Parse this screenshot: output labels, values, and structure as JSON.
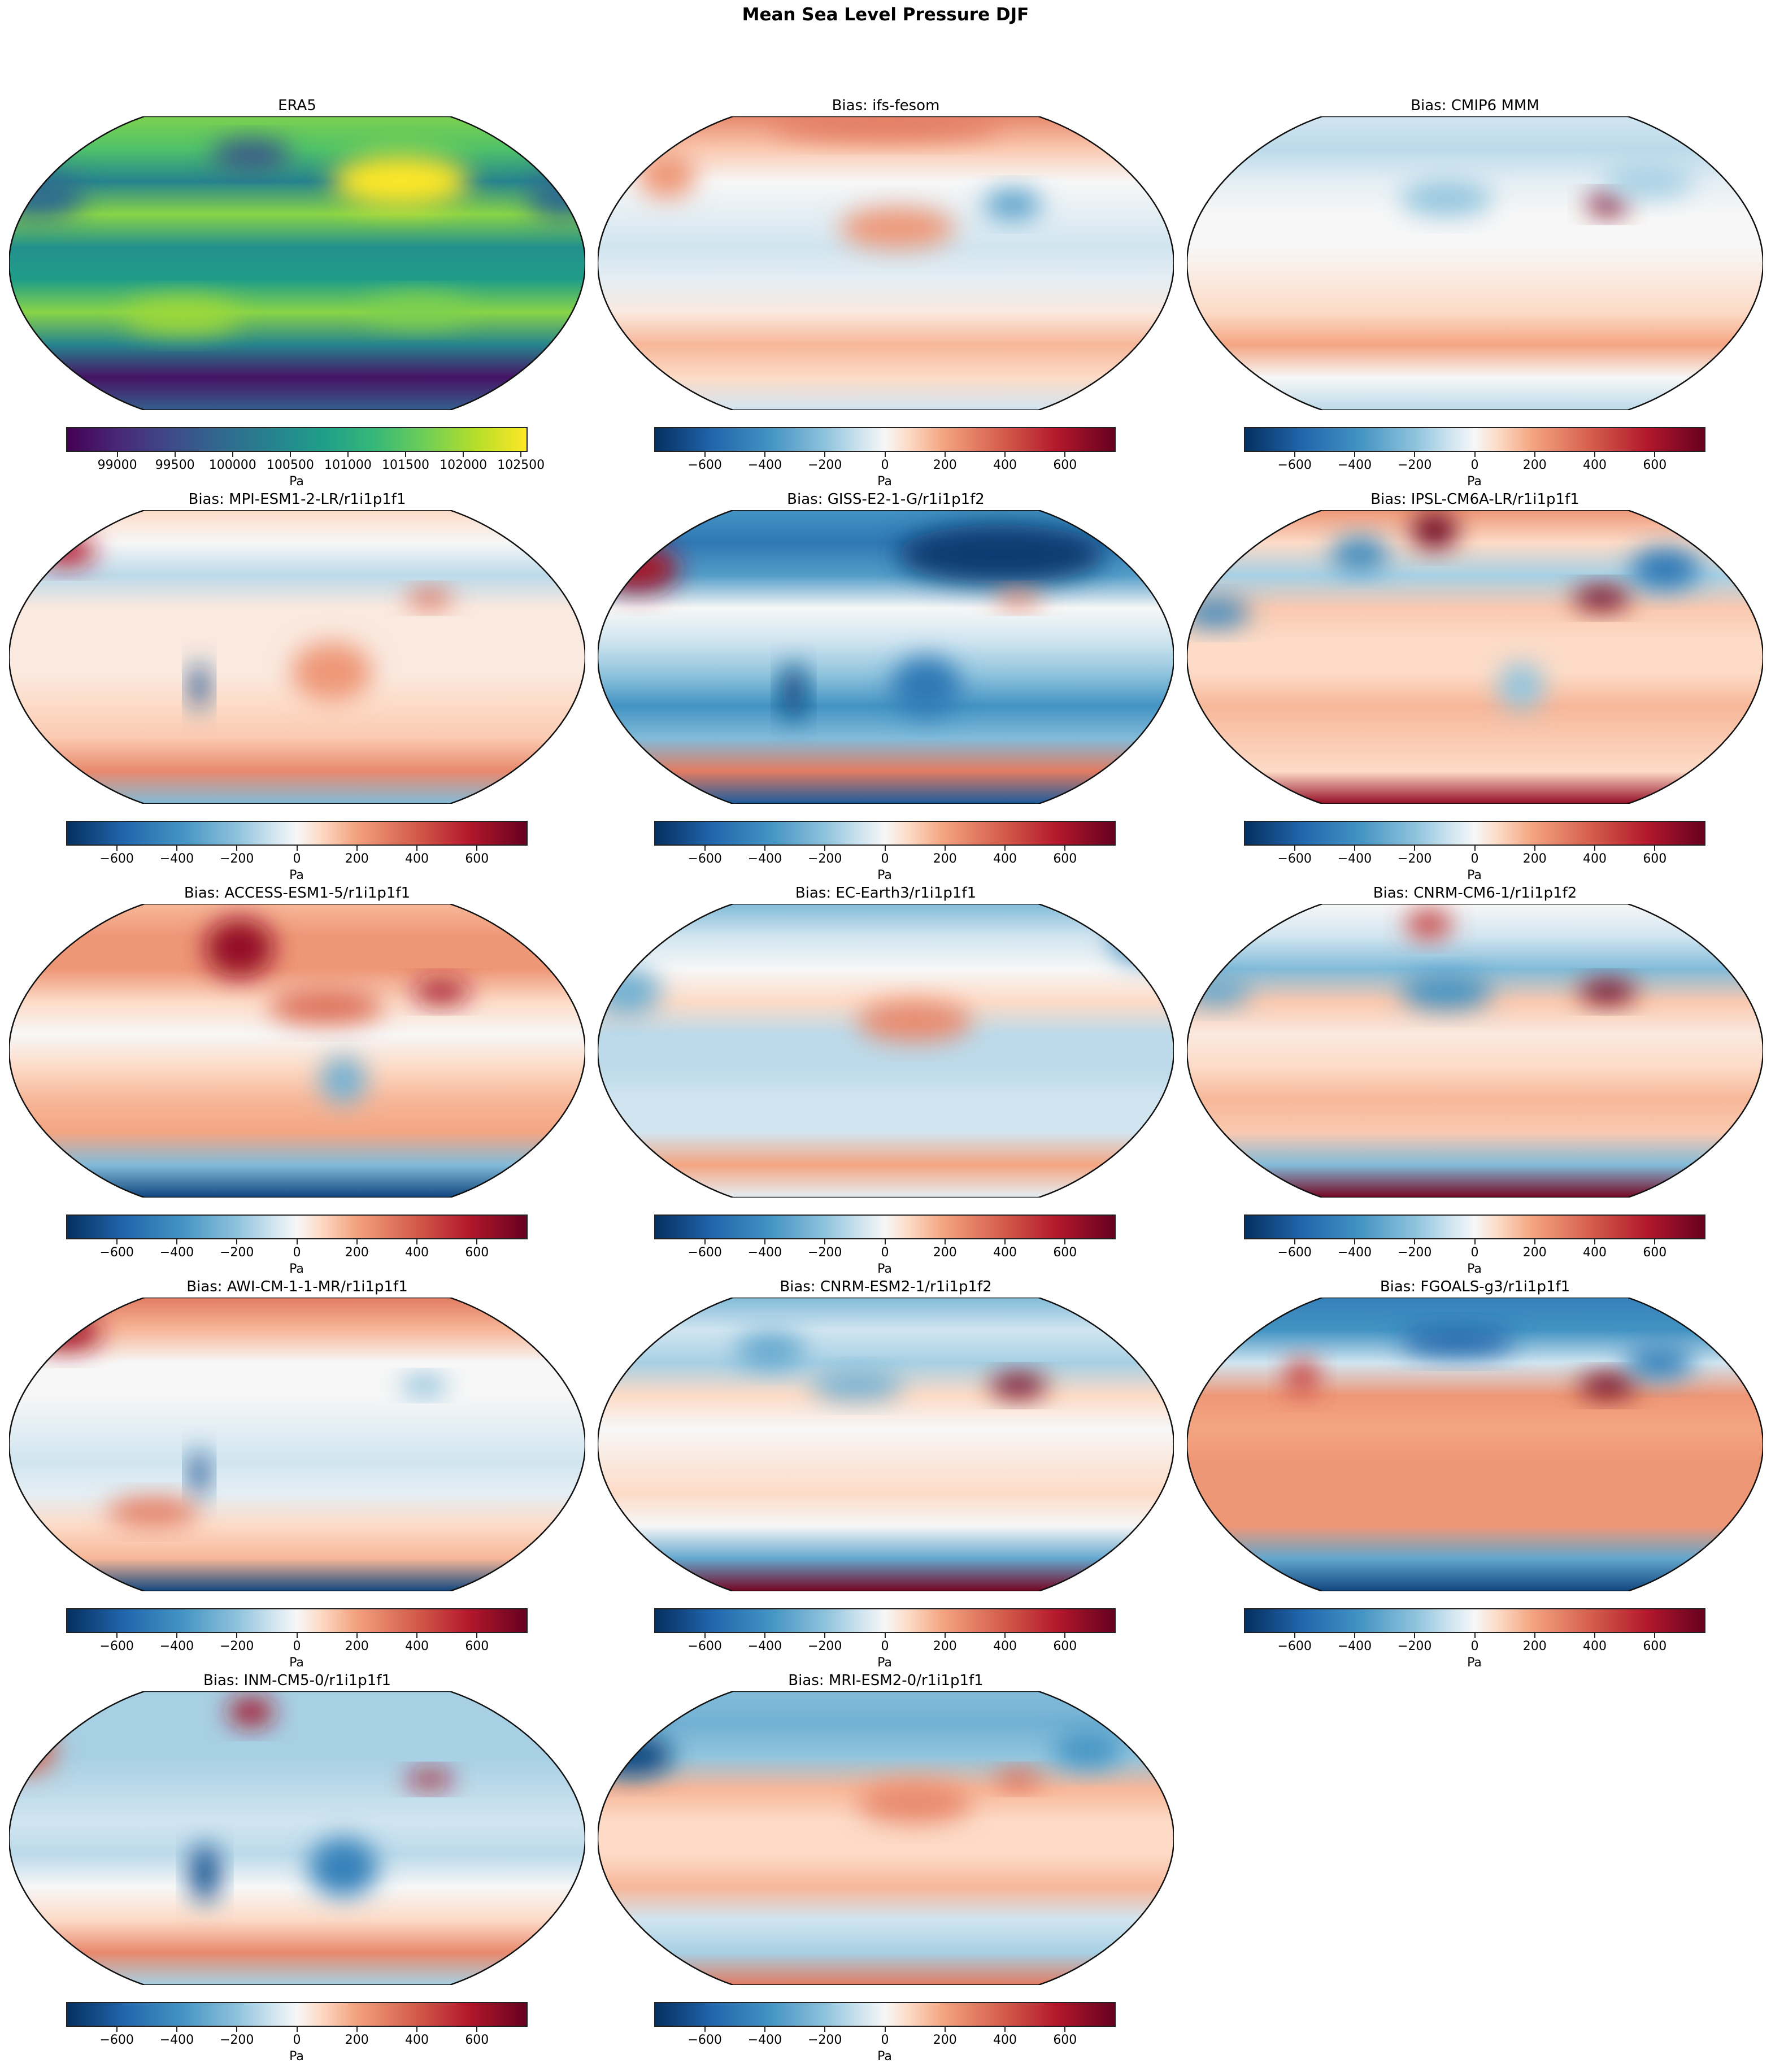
{
  "figure_title": "Mean Sea Level Pressure DJF",
  "chart_data": [
    {
      "type": "heatmap",
      "title": "ERA5",
      "colormap": "viridis",
      "colorbar_label": "Pa",
      "clim": [
        98566,
        102548
      ],
      "ticks": [
        99000,
        99500,
        100000,
        100500,
        101000,
        101500,
        102000,
        102500
      ],
      "tick_labels": [
        "99000",
        "99500",
        "100000",
        "100500",
        "101000",
        "101500",
        "102000",
        "102500"
      ],
      "projection": "Robinson"
    },
    {
      "type": "heatmap",
      "title": "Bias: ifs-fesom",
      "colormap": "RdBu_r",
      "colorbar_label": "Pa",
      "clim": [
        -765,
        765
      ],
      "ticks": [
        -600,
        -400,
        -200,
        0,
        200,
        400,
        600
      ],
      "tick_labels": [
        "−600",
        "−400",
        "−200",
        "0",
        "200",
        "400",
        "600"
      ],
      "projection": "Robinson"
    },
    {
      "type": "heatmap",
      "title": "Bias: CMIP6 MMM",
      "colormap": "RdBu_r",
      "colorbar_label": "Pa",
      "clim": [
        -765,
        765
      ],
      "ticks": [
        -600,
        -400,
        -200,
        0,
        200,
        400,
        600
      ],
      "tick_labels": [
        "−600",
        "−400",
        "−200",
        "0",
        "200",
        "400",
        "600"
      ],
      "projection": "Robinson"
    },
    {
      "type": "heatmap",
      "title": "Bias: MPI-ESM1-2-LR/r1i1p1f1",
      "colormap": "RdBu_r",
      "colorbar_label": "Pa",
      "clim": [
        -765,
        765
      ],
      "ticks": [
        -600,
        -400,
        -200,
        0,
        200,
        400,
        600
      ],
      "tick_labels": [
        "−600",
        "−400",
        "−200",
        "0",
        "200",
        "400",
        "600"
      ],
      "projection": "Robinson"
    },
    {
      "type": "heatmap",
      "title": "Bias: GISS-E2-1-G/r1i1p1f2",
      "colormap": "RdBu_r",
      "colorbar_label": "Pa",
      "clim": [
        -765,
        765
      ],
      "ticks": [
        -600,
        -400,
        -200,
        0,
        200,
        400,
        600
      ],
      "tick_labels": [
        "−600",
        "−400",
        "−200",
        "0",
        "200",
        "400",
        "600"
      ],
      "projection": "Robinson"
    },
    {
      "type": "heatmap",
      "title": "Bias: IPSL-CM6A-LR/r1i1p1f1",
      "colormap": "RdBu_r",
      "colorbar_label": "Pa",
      "clim": [
        -765,
        765
      ],
      "ticks": [
        -600,
        -400,
        -200,
        0,
        200,
        400,
        600
      ],
      "tick_labels": [
        "−600",
        "−400",
        "−200",
        "0",
        "200",
        "400",
        "600"
      ],
      "projection": "Robinson"
    },
    {
      "type": "heatmap",
      "title": "Bias: ACCESS-ESM1-5/r1i1p1f1",
      "colormap": "RdBu_r",
      "colorbar_label": "Pa",
      "clim": [
        -765,
        765
      ],
      "ticks": [
        -600,
        -400,
        -200,
        0,
        200,
        400,
        600
      ],
      "tick_labels": [
        "−600",
        "−400",
        "−200",
        "0",
        "200",
        "400",
        "600"
      ],
      "projection": "Robinson"
    },
    {
      "type": "heatmap",
      "title": "Bias: EC-Earth3/r1i1p1f1",
      "colormap": "RdBu_r",
      "colorbar_label": "Pa",
      "clim": [
        -765,
        765
      ],
      "ticks": [
        -600,
        -400,
        -200,
        0,
        200,
        400,
        600
      ],
      "tick_labels": [
        "−600",
        "−400",
        "−200",
        "0",
        "200",
        "400",
        "600"
      ],
      "projection": "Robinson"
    },
    {
      "type": "heatmap",
      "title": "Bias: CNRM-CM6-1/r1i1p1f2",
      "colormap": "RdBu_r",
      "colorbar_label": "Pa",
      "clim": [
        -765,
        765
      ],
      "ticks": [
        -600,
        -400,
        -200,
        0,
        200,
        400,
        600
      ],
      "tick_labels": [
        "−600",
        "−400",
        "−200",
        "0",
        "200",
        "400",
        "600"
      ],
      "projection": "Robinson"
    },
    {
      "type": "heatmap",
      "title": "Bias: AWI-CM-1-1-MR/r1i1p1f1",
      "colormap": "RdBu_r",
      "colorbar_label": "Pa",
      "clim": [
        -765,
        765
      ],
      "ticks": [
        -600,
        -400,
        -200,
        0,
        200,
        400,
        600
      ],
      "tick_labels": [
        "−600",
        "−400",
        "−200",
        "0",
        "200",
        "400",
        "600"
      ],
      "projection": "Robinson"
    },
    {
      "type": "heatmap",
      "title": "Bias: CNRM-ESM2-1/r1i1p1f2",
      "colormap": "RdBu_r",
      "colorbar_label": "Pa",
      "clim": [
        -765,
        765
      ],
      "ticks": [
        -600,
        -400,
        -200,
        0,
        200,
        400,
        600
      ],
      "tick_labels": [
        "−600",
        "−400",
        "−200",
        "0",
        "200",
        "400",
        "600"
      ],
      "projection": "Robinson"
    },
    {
      "type": "heatmap",
      "title": "Bias: FGOALS-g3/r1i1p1f1",
      "colormap": "RdBu_r",
      "colorbar_label": "Pa",
      "clim": [
        -765,
        765
      ],
      "ticks": [
        -600,
        -400,
        -200,
        0,
        200,
        400,
        600
      ],
      "tick_labels": [
        "−600",
        "−400",
        "−200",
        "0",
        "200",
        "400",
        "600"
      ],
      "projection": "Robinson"
    },
    {
      "type": "heatmap",
      "title": "Bias: INM-CM5-0/r1i1p1f1",
      "colormap": "RdBu_r",
      "colorbar_label": "Pa",
      "clim": [
        -765,
        765
      ],
      "ticks": [
        -600,
        -400,
        -200,
        0,
        200,
        400,
        600
      ],
      "tick_labels": [
        "−600",
        "−400",
        "−200",
        "0",
        "200",
        "400",
        "600"
      ],
      "projection": "Robinson"
    },
    {
      "type": "heatmap",
      "title": "Bias: MRI-ESM2-0/r1i1p1f1",
      "colormap": "RdBu_r",
      "colorbar_label": "Pa",
      "clim": [
        -765,
        765
      ],
      "ticks": [
        -600,
        -400,
        -200,
        0,
        200,
        400,
        600
      ],
      "tick_labels": [
        "−600",
        "−400",
        "−200",
        "0",
        "200",
        "400",
        "600"
      ],
      "projection": "Robinson"
    }
  ]
}
